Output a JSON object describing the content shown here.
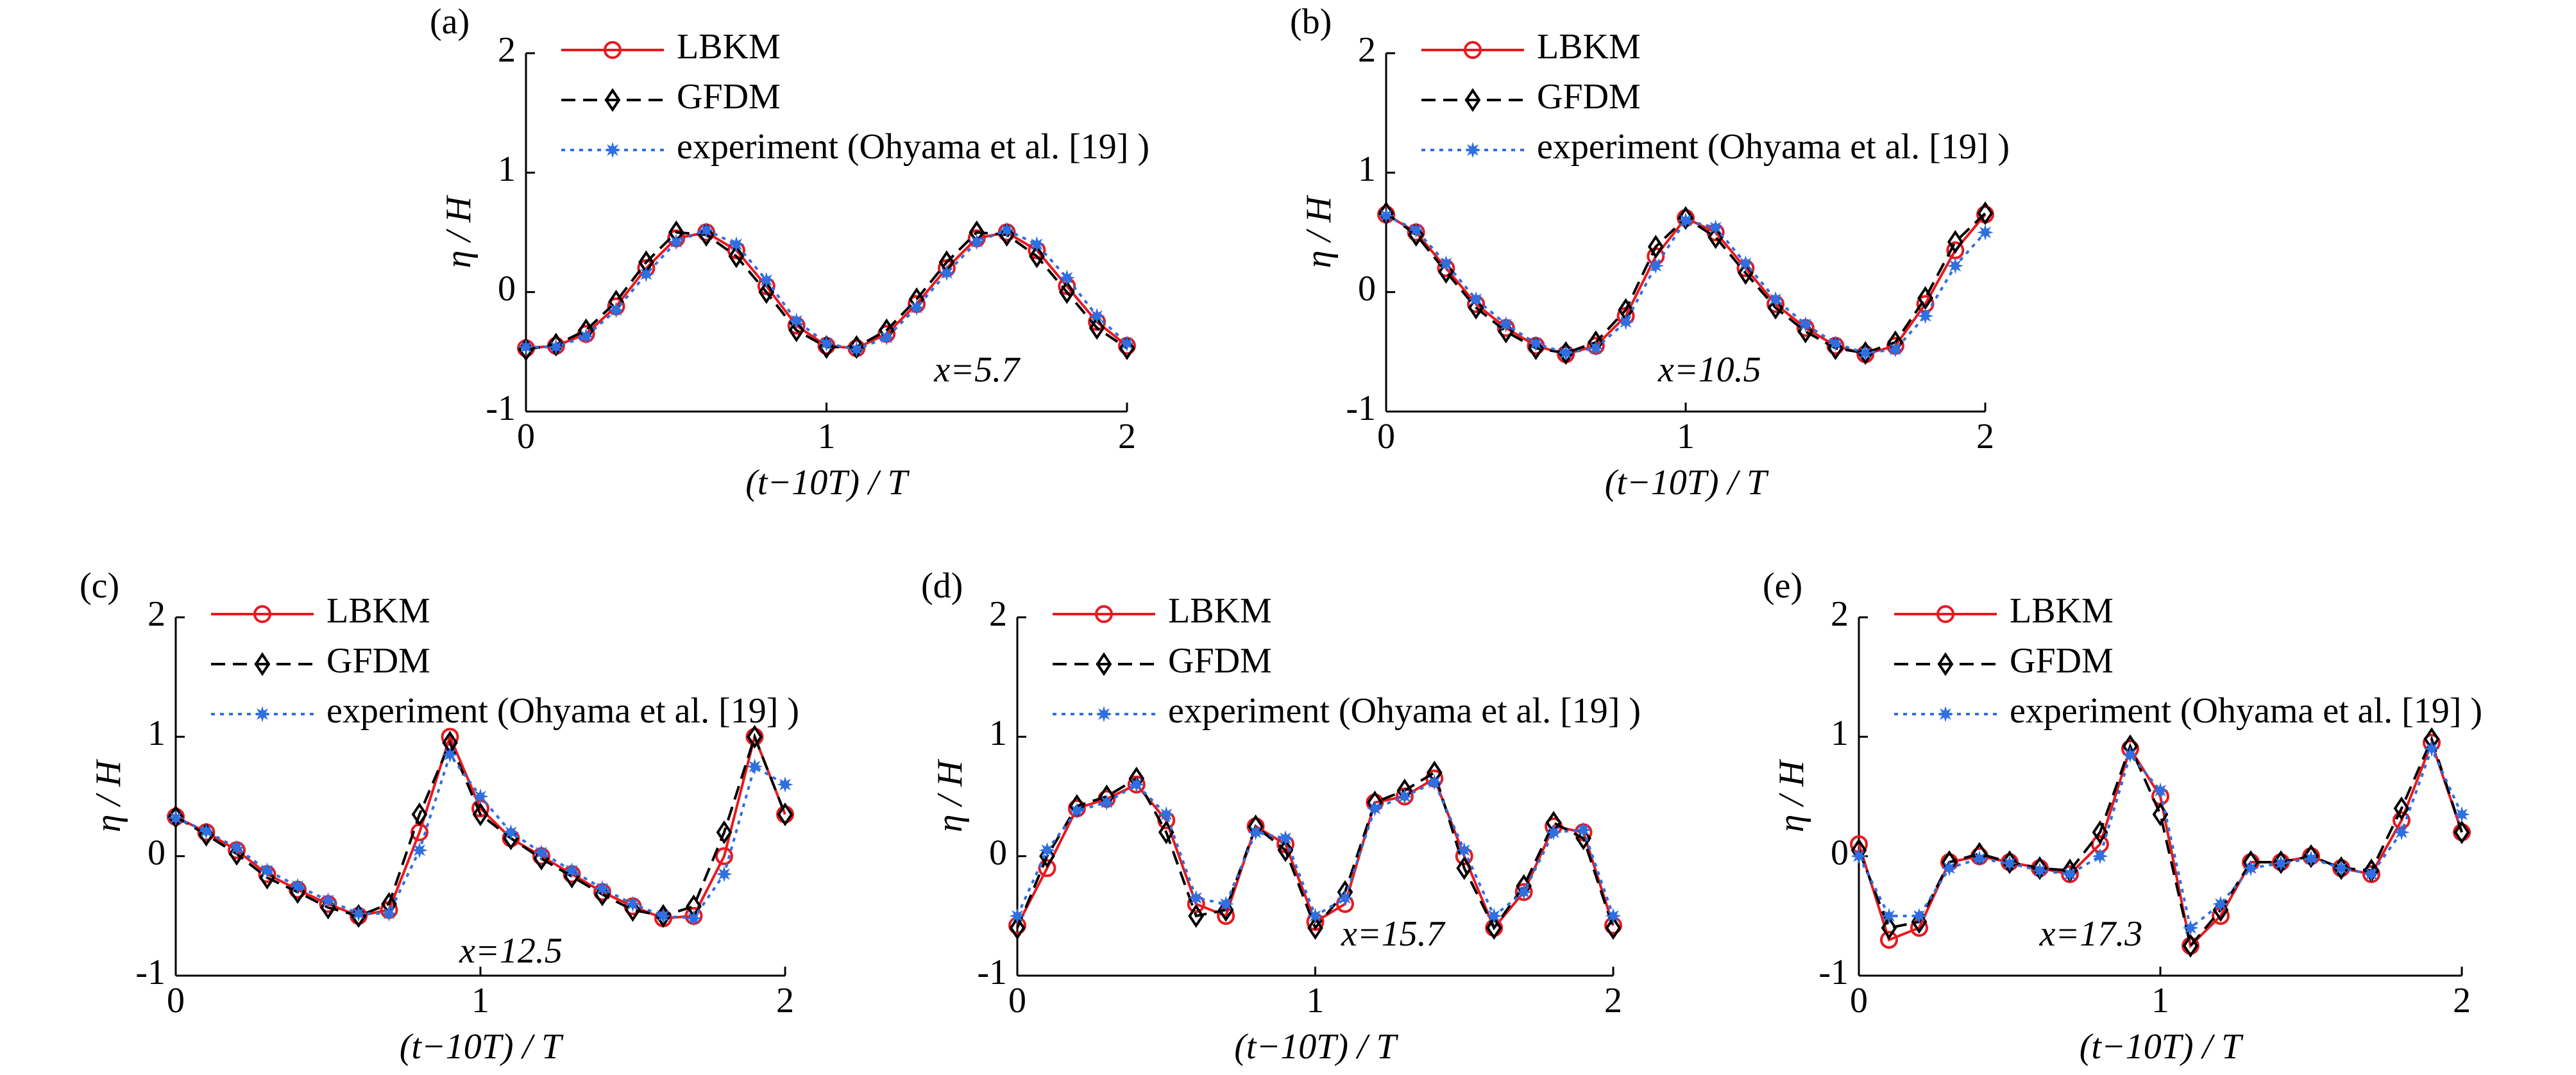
{
  "chart_data": [
    {
      "type": "line",
      "panel": "(a)",
      "annotation": "x=5.7",
      "xlabel": "(t−10T) / T",
      "ylabel": "η / H",
      "xlim": [
        0,
        2
      ],
      "ylim": [
        -1,
        2
      ],
      "xticks": [
        0,
        1,
        2
      ],
      "yticks": [
        -1,
        0,
        1,
        2
      ],
      "x": [
        0,
        0.1,
        0.2,
        0.3,
        0.4,
        0.5,
        0.6,
        0.7,
        0.8,
        0.9,
        1.0,
        1.1,
        1.2,
        1.3,
        1.4,
        1.5,
        1.6,
        1.7,
        1.8,
        1.9,
        2.0
      ],
      "series": [
        {
          "name": "LBKM",
          "color": "#e8191f",
          "linestyle": "solid",
          "marker": "circle",
          "values": [
            -0.47,
            -0.45,
            -0.35,
            -0.12,
            0.2,
            0.45,
            0.5,
            0.35,
            0.05,
            -0.28,
            -0.45,
            -0.47,
            -0.35,
            -0.1,
            0.2,
            0.45,
            0.5,
            0.35,
            0.05,
            -0.25,
            -0.45
          ]
        },
        {
          "name": "GFDM",
          "color": "#000000",
          "linestyle": "dashed",
          "marker": "diamond",
          "values": [
            -0.48,
            -0.44,
            -0.32,
            -0.08,
            0.25,
            0.5,
            0.48,
            0.3,
            0.0,
            -0.32,
            -0.46,
            -0.46,
            -0.32,
            -0.06,
            0.25,
            0.5,
            0.48,
            0.3,
            0.0,
            -0.3,
            -0.47
          ]
        },
        {
          "name": "experiment (Ohyama et al. [19] )",
          "color": "#2f6fe0",
          "linestyle": "dotted",
          "marker": "star",
          "values": [
            -0.46,
            -0.46,
            -0.37,
            -0.15,
            0.15,
            0.42,
            0.52,
            0.4,
            0.1,
            -0.24,
            -0.43,
            -0.48,
            -0.38,
            -0.13,
            0.16,
            0.42,
            0.52,
            0.4,
            0.12,
            -0.2,
            -0.43
          ]
        }
      ]
    },
    {
      "type": "line",
      "panel": "(b)",
      "annotation": "x=10.5",
      "xlabel": "(t−10T) / T",
      "ylabel": "η / H",
      "xlim": [
        0,
        2
      ],
      "ylim": [
        -1,
        2
      ],
      "xticks": [
        0,
        1,
        2
      ],
      "yticks": [
        -1,
        0,
        1,
        2
      ],
      "x": [
        0,
        0.1,
        0.2,
        0.3,
        0.4,
        0.5,
        0.6,
        0.7,
        0.8,
        0.9,
        1.0,
        1.1,
        1.2,
        1.3,
        1.4,
        1.5,
        1.6,
        1.7,
        1.8,
        1.9,
        2.0
      ],
      "series": [
        {
          "name": "LBKM",
          "color": "#e8191f",
          "linestyle": "solid",
          "marker": "circle",
          "values": [
            0.65,
            0.5,
            0.2,
            -0.1,
            -0.3,
            -0.45,
            -0.52,
            -0.45,
            -0.2,
            0.3,
            0.62,
            0.5,
            0.2,
            -0.1,
            -0.3,
            -0.45,
            -0.52,
            -0.45,
            -0.1,
            0.35,
            0.65
          ]
        },
        {
          "name": "GFDM",
          "color": "#000000",
          "linestyle": "dashed",
          "marker": "diamond",
          "values": [
            0.66,
            0.48,
            0.17,
            -0.13,
            -0.33,
            -0.47,
            -0.51,
            -0.42,
            -0.15,
            0.38,
            0.62,
            0.46,
            0.16,
            -0.13,
            -0.33,
            -0.47,
            -0.51,
            -0.42,
            -0.05,
            0.42,
            0.66
          ]
        },
        {
          "name": "experiment (Ohyama et al. [19] )",
          "color": "#2f6fe0",
          "linestyle": "dotted",
          "marker": "star",
          "values": [
            0.64,
            0.52,
            0.24,
            -0.06,
            -0.27,
            -0.43,
            -0.51,
            -0.47,
            -0.25,
            0.22,
            0.6,
            0.54,
            0.24,
            -0.06,
            -0.27,
            -0.43,
            -0.51,
            -0.48,
            -0.2,
            0.22,
            0.5
          ]
        }
      ]
    },
    {
      "type": "line",
      "panel": "(c)",
      "annotation": "x=12.5",
      "xlabel": "(t−10T) / T",
      "ylabel": "η / H",
      "xlim": [
        0,
        2
      ],
      "ylim": [
        -1,
        2
      ],
      "xticks": [
        0,
        1,
        2
      ],
      "yticks": [
        -1,
        0,
        1,
        2
      ],
      "x": [
        0,
        0.1,
        0.2,
        0.3,
        0.4,
        0.5,
        0.6,
        0.7,
        0.8,
        0.9,
        1.0,
        1.1,
        1.2,
        1.3,
        1.4,
        1.5,
        1.6,
        1.7,
        1.8,
        1.9,
        2.0
      ],
      "series": [
        {
          "name": "LBKM",
          "color": "#e8191f",
          "linestyle": "solid",
          "marker": "circle",
          "values": [
            0.33,
            0.2,
            0.05,
            -0.15,
            -0.28,
            -0.4,
            -0.5,
            -0.45,
            0.2,
            1.0,
            0.4,
            0.15,
            0.0,
            -0.15,
            -0.3,
            -0.42,
            -0.52,
            -0.5,
            0.0,
            1.0,
            0.35
          ]
        },
        {
          "name": "GFDM",
          "color": "#000000",
          "linestyle": "dashed",
          "marker": "diamond",
          "values": [
            0.33,
            0.18,
            0.02,
            -0.18,
            -0.3,
            -0.43,
            -0.5,
            -0.4,
            0.35,
            0.95,
            0.35,
            0.15,
            -0.02,
            -0.17,
            -0.32,
            -0.45,
            -0.5,
            -0.42,
            0.2,
            1.0,
            0.35
          ]
        },
        {
          "name": "experiment (Ohyama et al. [19] )",
          "color": "#2f6fe0",
          "linestyle": "dotted",
          "marker": "star",
          "values": [
            0.32,
            0.21,
            0.07,
            -0.12,
            -0.25,
            -0.37,
            -0.48,
            -0.48,
            0.05,
            0.85,
            0.5,
            0.2,
            0.03,
            -0.12,
            -0.27,
            -0.4,
            -0.5,
            -0.52,
            -0.15,
            0.75,
            0.6
          ]
        }
      ]
    },
    {
      "type": "line",
      "panel": "(d)",
      "annotation": "x=15.7",
      "xlabel": "(t−10T) / T",
      "ylabel": "η / H",
      "xlim": [
        0,
        2
      ],
      "ylim": [
        -1,
        2
      ],
      "xticks": [
        0,
        1,
        2
      ],
      "yticks": [
        -1,
        0,
        1,
        2
      ],
      "x": [
        0,
        0.1,
        0.2,
        0.3,
        0.4,
        0.5,
        0.6,
        0.7,
        0.8,
        0.9,
        1.0,
        1.1,
        1.2,
        1.3,
        1.4,
        1.5,
        1.6,
        1.7,
        1.8,
        1.9,
        2.0
      ],
      "series": [
        {
          "name": "LBKM",
          "color": "#e8191f",
          "linestyle": "solid",
          "marker": "circle",
          "values": [
            -0.58,
            -0.1,
            0.4,
            0.48,
            0.6,
            0.3,
            -0.4,
            -0.5,
            0.25,
            0.1,
            -0.55,
            -0.4,
            0.45,
            0.5,
            0.65,
            0.0,
            -0.6,
            -0.3,
            0.25,
            0.2,
            -0.58
          ]
        },
        {
          "name": "GFDM",
          "color": "#000000",
          "linestyle": "dashed",
          "marker": "diamond",
          "values": [
            -0.6,
            0.0,
            0.42,
            0.5,
            0.65,
            0.2,
            -0.5,
            -0.45,
            0.25,
            0.05,
            -0.6,
            -0.3,
            0.45,
            0.55,
            0.7,
            -0.1,
            -0.6,
            -0.25,
            0.28,
            0.15,
            -0.6
          ]
        },
        {
          "name": "experiment (Ohyama et al. [19] )",
          "color": "#2f6fe0",
          "linestyle": "dotted",
          "marker": "star",
          "values": [
            -0.5,
            0.05,
            0.38,
            0.45,
            0.6,
            0.35,
            -0.35,
            -0.4,
            0.2,
            0.15,
            -0.5,
            -0.35,
            0.4,
            0.5,
            0.62,
            0.05,
            -0.5,
            -0.3,
            0.2,
            0.22,
            -0.5
          ]
        }
      ]
    },
    {
      "type": "line",
      "panel": "(e)",
      "annotation": "x=17.3",
      "xlabel": "(t−10T) / T",
      "ylabel": "η / H",
      "xlim": [
        0,
        2
      ],
      "ylim": [
        -1,
        2
      ],
      "xticks": [
        0,
        1,
        2
      ],
      "yticks": [
        -1,
        0,
        1,
        2
      ],
      "x": [
        0,
        0.1,
        0.2,
        0.3,
        0.4,
        0.5,
        0.6,
        0.7,
        0.8,
        0.9,
        1.0,
        1.1,
        1.2,
        1.3,
        1.4,
        1.5,
        1.6,
        1.7,
        1.8,
        1.9,
        2.0
      ],
      "series": [
        {
          "name": "LBKM",
          "color": "#e8191f",
          "linestyle": "solid",
          "marker": "circle",
          "values": [
            0.1,
            -0.7,
            -0.6,
            -0.05,
            0.0,
            -0.05,
            -0.1,
            -0.15,
            0.1,
            0.9,
            0.5,
            -0.75,
            -0.5,
            -0.05,
            -0.05,
            0.0,
            -0.1,
            -0.15,
            0.3,
            0.95,
            0.2
          ]
        },
        {
          "name": "GFDM",
          "color": "#000000",
          "linestyle": "dashed",
          "marker": "diamond",
          "values": [
            0.05,
            -0.6,
            -0.55,
            -0.05,
            0.02,
            -0.05,
            -0.1,
            -0.12,
            0.2,
            0.92,
            0.35,
            -0.75,
            -0.45,
            -0.05,
            -0.05,
            0.0,
            -0.1,
            -0.12,
            0.4,
            0.98,
            0.2
          ]
        },
        {
          "name": "experiment (Ohyama et al. [19] )",
          "color": "#2f6fe0",
          "linestyle": "dotted",
          "marker": "star",
          "values": [
            0.0,
            -0.5,
            -0.5,
            -0.1,
            -0.02,
            -0.06,
            -0.12,
            -0.15,
            0.0,
            0.85,
            0.55,
            -0.6,
            -0.4,
            -0.1,
            -0.06,
            -0.02,
            -0.1,
            -0.15,
            0.2,
            0.9,
            0.35
          ]
        }
      ]
    }
  ]
}
